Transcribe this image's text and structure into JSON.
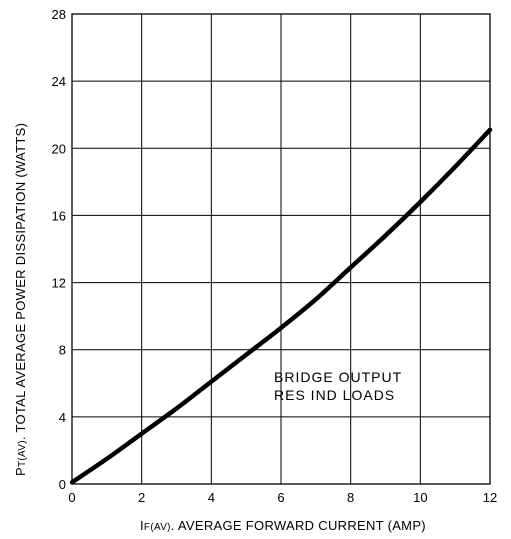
{
  "chart_data": {
    "type": "line",
    "xlabel": {
      "main": "I",
      "sub": "F(AV)",
      "rest": ". AVERAGE  FORWARD  CURRENT  (AMP)"
    },
    "ylabel": {
      "main": "P",
      "sub": "T(AV)",
      "rest": ". TOTAL AVERAGE  POWER  DISSIPATION (WATTS)"
    },
    "xlim": [
      0,
      12
    ],
    "ylim": [
      0,
      28
    ],
    "xticks": [
      "0",
      "2",
      "4",
      "6",
      "8",
      "10",
      "12"
    ],
    "yticks": [
      "0",
      "4",
      "8",
      "12",
      "16",
      "20",
      "24",
      "28"
    ],
    "grid": true,
    "annotation": [
      "BRIDGE  OUTPUT",
      "RES  IND  LOADS"
    ],
    "series": [
      {
        "x": [
          0,
          1,
          2,
          3,
          4,
          5,
          6,
          7,
          8,
          9,
          10,
          11,
          12
        ],
        "y": [
          0.1,
          1.5,
          3.0,
          4.5,
          6.1,
          7.7,
          9.3,
          11.0,
          12.9,
          14.8,
          16.8,
          18.9,
          21.1
        ]
      }
    ]
  }
}
